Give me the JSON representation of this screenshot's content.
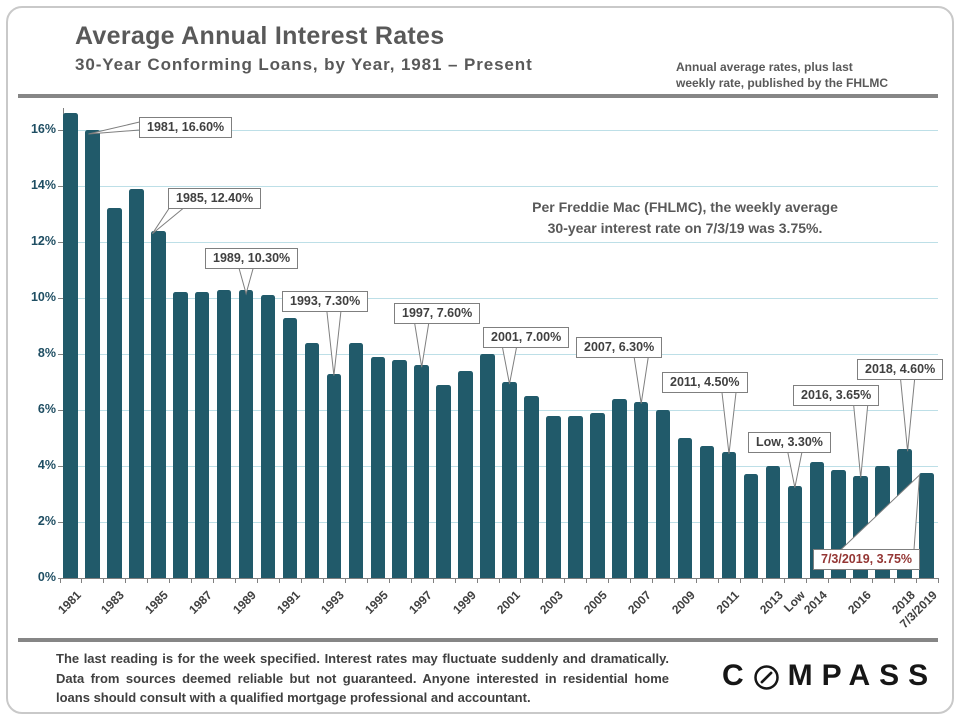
{
  "page": {
    "title": "Average Annual Interest Rates",
    "subtitle": "30-Year Conforming Loans, by Year, 1981 – Present",
    "source_note_line1": "Annual average rates, plus last",
    "source_note_line2": "weekly rate, published by the FHLMC",
    "annotation": {
      "line1": "Per Freddie Mac (FHLMC), the weekly average",
      "line2": "30-year interest rate on 7/3/19 was 3.75%."
    },
    "disclaimer": "The last reading is for the week specified. Interest rates may fluctuate suddenly and dramatically. Data from sources deemed reliable but not guaranteed. Anyone interested in residential home loans should consult with a qualified mortgage professional and accountant.",
    "logo": "COMPASS"
  },
  "colors": {
    "bar": "#215A6A",
    "grid": "#BDDFE7",
    "axis": "#808080",
    "y_label": "#1F4E63",
    "x_label": "#404040",
    "title_gray": "#595959",
    "callout_text": "#404040",
    "callout_highlight": "#943634",
    "divider": "#868686"
  },
  "chart_data": {
    "type": "bar",
    "title": "Average Annual Interest Rates",
    "subtitle": "30-Year Conforming Loans, by Year, 1981 – Present",
    "xlabel": "",
    "ylabel": "",
    "ylim": [
      0,
      17
    ],
    "grid": true,
    "y_ticks": [
      "0%",
      "2%",
      "4%",
      "6%",
      "8%",
      "10%",
      "12%",
      "14%",
      "16%"
    ],
    "categories": [
      "1981",
      "1982",
      "1983",
      "1984",
      "1985",
      "1986",
      "1987",
      "1988",
      "1989",
      "1990",
      "1991",
      "1992",
      "1993",
      "1994",
      "1995",
      "1996",
      "1997",
      "1998",
      "1999",
      "2000",
      "2001",
      "2002",
      "2003",
      "2004",
      "2005",
      "2006",
      "2007",
      "2008",
      "2009",
      "2010",
      "2011",
      "2012",
      "2013",
      "Low",
      "2014",
      "2015",
      "2016",
      "2017",
      "2018",
      "7/3/2019"
    ],
    "values": [
      16.6,
      16.0,
      13.2,
      13.9,
      12.4,
      10.2,
      10.2,
      10.3,
      10.3,
      10.1,
      9.3,
      8.4,
      7.3,
      8.4,
      7.9,
      7.8,
      7.6,
      6.9,
      7.4,
      8.0,
      7.0,
      6.5,
      5.8,
      5.8,
      5.9,
      6.4,
      6.3,
      6.0,
      5.0,
      4.7,
      4.5,
      3.7,
      4.0,
      3.3,
      4.15,
      3.85,
      3.65,
      4.0,
      4.6,
      3.75
    ],
    "x_axis_labels": [
      "1981",
      "1983",
      "1985",
      "1987",
      "1989",
      "1991",
      "1993",
      "1995",
      "1997",
      "1999",
      "2001",
      "2003",
      "2005",
      "2007",
      "2009",
      "2011",
      "2013",
      "Low",
      "2014",
      "2016",
      "2018",
      "7/3/2019"
    ],
    "callouts": [
      {
        "target": "1981",
        "label": "1981, 16.60%",
        "highlight": false
      },
      {
        "target": "1985",
        "label": "1985, 12.40%",
        "highlight": false
      },
      {
        "target": "1989",
        "label": "1989, 10.30%",
        "highlight": false
      },
      {
        "target": "1993",
        "label": "1993, 7.30%",
        "highlight": false
      },
      {
        "target": "1997",
        "label": "1997, 7.60%",
        "highlight": false
      },
      {
        "target": "2001",
        "label": "2001, 7.00%",
        "highlight": false
      },
      {
        "target": "2007",
        "label": "2007, 6.30%",
        "highlight": false
      },
      {
        "target": "2011",
        "label": "2011, 4.50%",
        "highlight": false
      },
      {
        "target": "Low",
        "label": "Low, 3.30%",
        "highlight": false
      },
      {
        "target": "2016",
        "label": "2016, 3.65%",
        "highlight": false
      },
      {
        "target": "2018",
        "label": "2018, 4.60%",
        "highlight": false
      },
      {
        "target": "7/3/2019",
        "label": "7/3/2019, 3.75%",
        "highlight": true
      }
    ]
  }
}
